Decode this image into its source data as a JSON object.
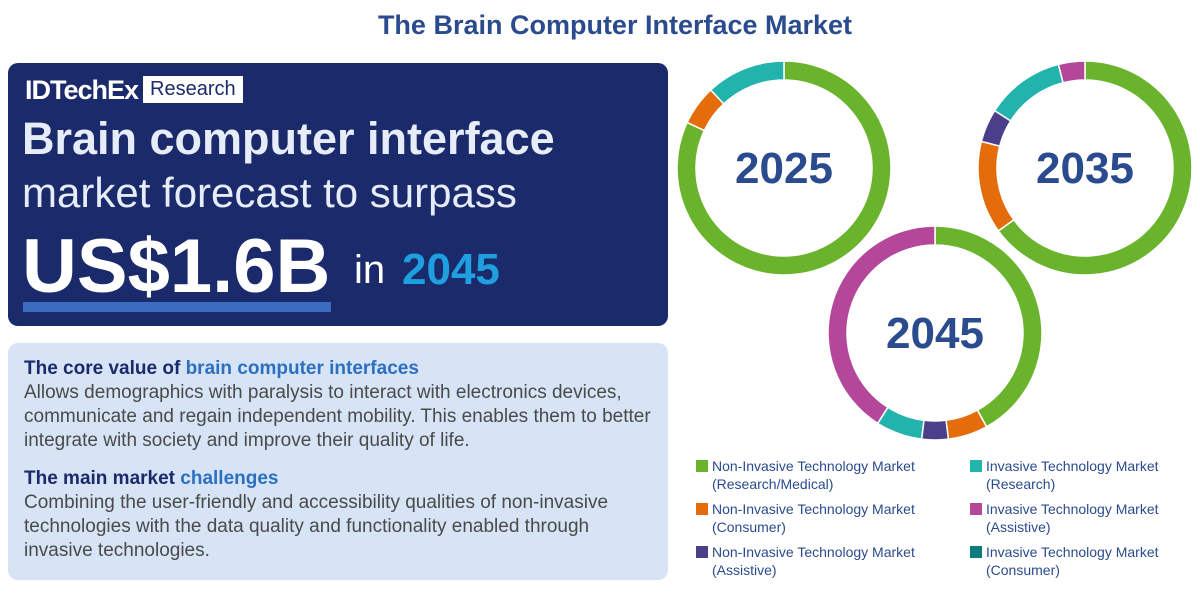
{
  "header": {
    "title": "The Brain Computer Interface Market"
  },
  "banner": {
    "brand": "IDTechEx",
    "tag": "Research",
    "line1": "Brain computer interface",
    "line2": "market forecast to surpass",
    "amount": "US$1.6B",
    "in": "in",
    "year": "2045"
  },
  "info": {
    "core_heading": "The core value of",
    "core_highlight": "brain computer interfaces",
    "core_body": "Allows demographics with paralysis to interact with electronics devices, communicate and regain independent mobility. This enables them to better integrate with society and improve their quality of life.",
    "challenge_heading": "The main market",
    "challenge_highlight": "challenges",
    "challenge_body": "Combining the user-friendly and accessibility qualities of non-invasive technologies with the data quality and functionality enabled through invasive technologies."
  },
  "chart_data": {
    "type": "donut",
    "categories": [
      "Non-Invasive Technology Market (Research/Medical)",
      "Invasive Technology Market (Research)",
      "Non-Invasive Technology Market (Consumer)",
      "Invasive Technology Market (Assistive)",
      "Non-Invasive Technology Market (Assistive)",
      "Invasive Technology Market (Consumer)"
    ],
    "colors": [
      "#6ab42d",
      "#22b3ad",
      "#e46c0a",
      "#b5479b",
      "#4b3f8a",
      "#0e7c7b"
    ],
    "series": [
      {
        "name": "2025",
        "values": [
          82,
          12,
          6,
          0,
          0,
          0
        ]
      },
      {
        "name": "2035",
        "values": [
          65,
          12,
          14,
          4,
          5,
          0
        ]
      },
      {
        "name": "2045",
        "values": [
          42,
          7,
          6,
          41,
          4,
          0
        ]
      }
    ]
  }
}
